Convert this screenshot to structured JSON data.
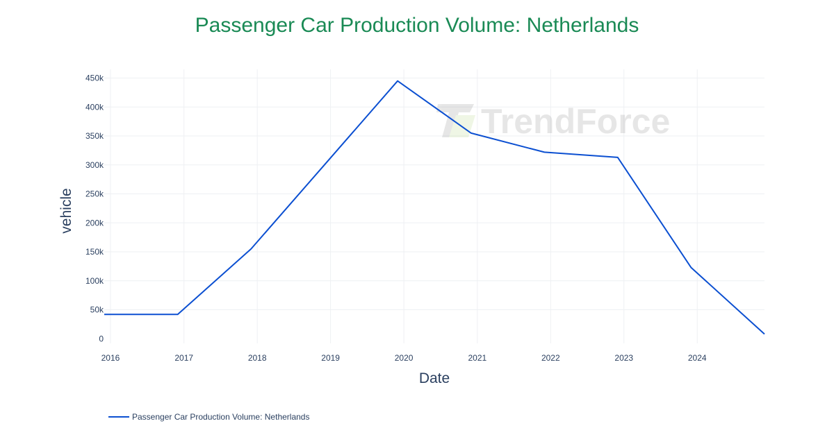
{
  "chart_data": {
    "type": "line",
    "title": "Passenger Car Production Volume: Netherlands",
    "xlabel": "Date",
    "ylabel": "vehicle",
    "x": [
      "2015-12",
      "2016-12",
      "2017-12",
      "2018-12",
      "2019-12",
      "2020-12",
      "2021-12",
      "2022-12",
      "2023-12",
      "2024-12"
    ],
    "x_tick_labels": [
      "2016",
      "2017",
      "2018",
      "2019",
      "2020",
      "2021",
      "2022",
      "2023",
      "2024"
    ],
    "y_ticks": [
      0,
      50000,
      100000,
      150000,
      200000,
      250000,
      300000,
      350000,
      400000,
      450000
    ],
    "y_tick_labels": [
      "0",
      "50k",
      "100k",
      "150k",
      "200k",
      "250k",
      "300k",
      "350k",
      "400k",
      "450k"
    ],
    "ylim": [
      -20000,
      465000
    ],
    "grid": true,
    "legend_position": "bottom-left",
    "series": [
      {
        "name": "Passenger Car Production Volume: Netherlands",
        "color": "#0b4fd1",
        "values": [
          42000,
          42000,
          155000,
          300000,
          445000,
          355000,
          322000,
          313000,
          123000,
          8000
        ]
      }
    ]
  },
  "watermark": {
    "text": "TrendForce"
  }
}
